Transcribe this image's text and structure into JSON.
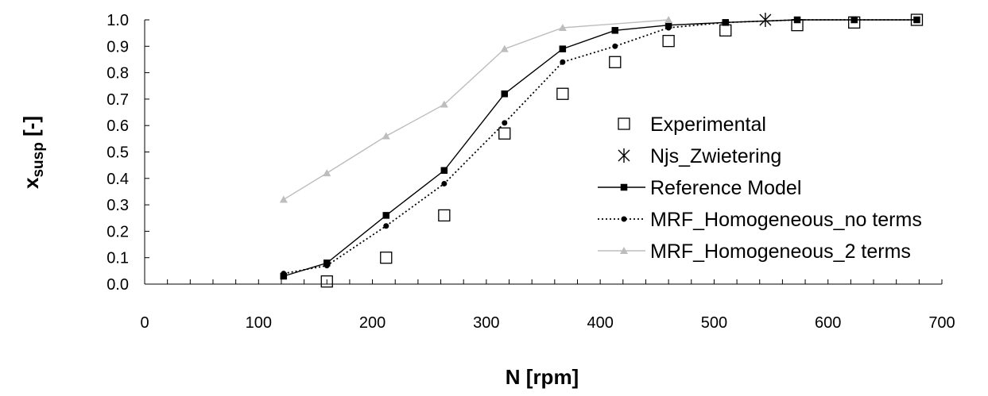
{
  "chart_data": {
    "type": "line",
    "xlabel": "N [rpm]",
    "ylabel_main": "x",
    "ylabel_sub": "susp",
    "ylabel_suffix": " [-]",
    "xlim": [
      0,
      700
    ],
    "ylim": [
      0,
      1.0
    ],
    "x_ticks": [
      0,
      100,
      200,
      300,
      400,
      500,
      600,
      700
    ],
    "x_tick_labels": [
      "0",
      "100",
      "200",
      "300",
      "400",
      "500",
      "600",
      "700"
    ],
    "y_ticks": [
      0,
      0.1,
      0.2,
      0.3,
      0.4,
      0.5,
      0.6,
      0.7,
      0.8,
      0.9,
      1.0
    ],
    "y_tick_labels": [
      "0.0",
      "0.1",
      "0.2",
      "0.3",
      "0.4",
      "0.5",
      "0.6",
      "0.7",
      "0.8",
      "0.9",
      "1.0"
    ],
    "grid": false,
    "legend_position": "center-right",
    "series": [
      {
        "name": "Experimental",
        "style": "markers",
        "marker": "open-square",
        "color": "#000000",
        "x": [
          160,
          212,
          263,
          316,
          367,
          413,
          460,
          510,
          573,
          623,
          678
        ],
        "y": [
          0.01,
          0.1,
          0.26,
          0.57,
          0.72,
          0.84,
          0.92,
          0.96,
          0.98,
          0.99,
          1.0
        ]
      },
      {
        "name": "Njs_Zwietering",
        "style": "markers",
        "marker": "asterisk",
        "color": "#000000",
        "x": [
          545
        ],
        "y": [
          1.0
        ]
      },
      {
        "name": "Reference Model",
        "style": "solid-line",
        "marker": "filled-square",
        "color": "#000000",
        "x": [
          122,
          160,
          212,
          263,
          316,
          367,
          413,
          460,
          510,
          573,
          623,
          678
        ],
        "y": [
          0.03,
          0.08,
          0.26,
          0.43,
          0.72,
          0.89,
          0.96,
          0.98,
          0.99,
          1.0,
          1.0,
          1.0
        ]
      },
      {
        "name": "MRF_Homogeneous_no terms",
        "style": "dotted-line",
        "marker": "filled-circle",
        "color": "#000000",
        "x": [
          122,
          160,
          212,
          263,
          316,
          367,
          413,
          460,
          510,
          573,
          623,
          678
        ],
        "y": [
          0.04,
          0.07,
          0.22,
          0.38,
          0.61,
          0.84,
          0.9,
          0.97,
          0.99,
          1.0,
          1.0,
          1.0
        ]
      },
      {
        "name": "MRF_Homogeneous_2 terms",
        "style": "solid-line",
        "marker": "filled-triangle",
        "color": "#bdbdbd",
        "x": [
          122,
          160,
          212,
          263,
          316,
          367,
          460
        ],
        "y": [
          0.32,
          0.42,
          0.56,
          0.68,
          0.89,
          0.97,
          1.0
        ]
      }
    ]
  }
}
